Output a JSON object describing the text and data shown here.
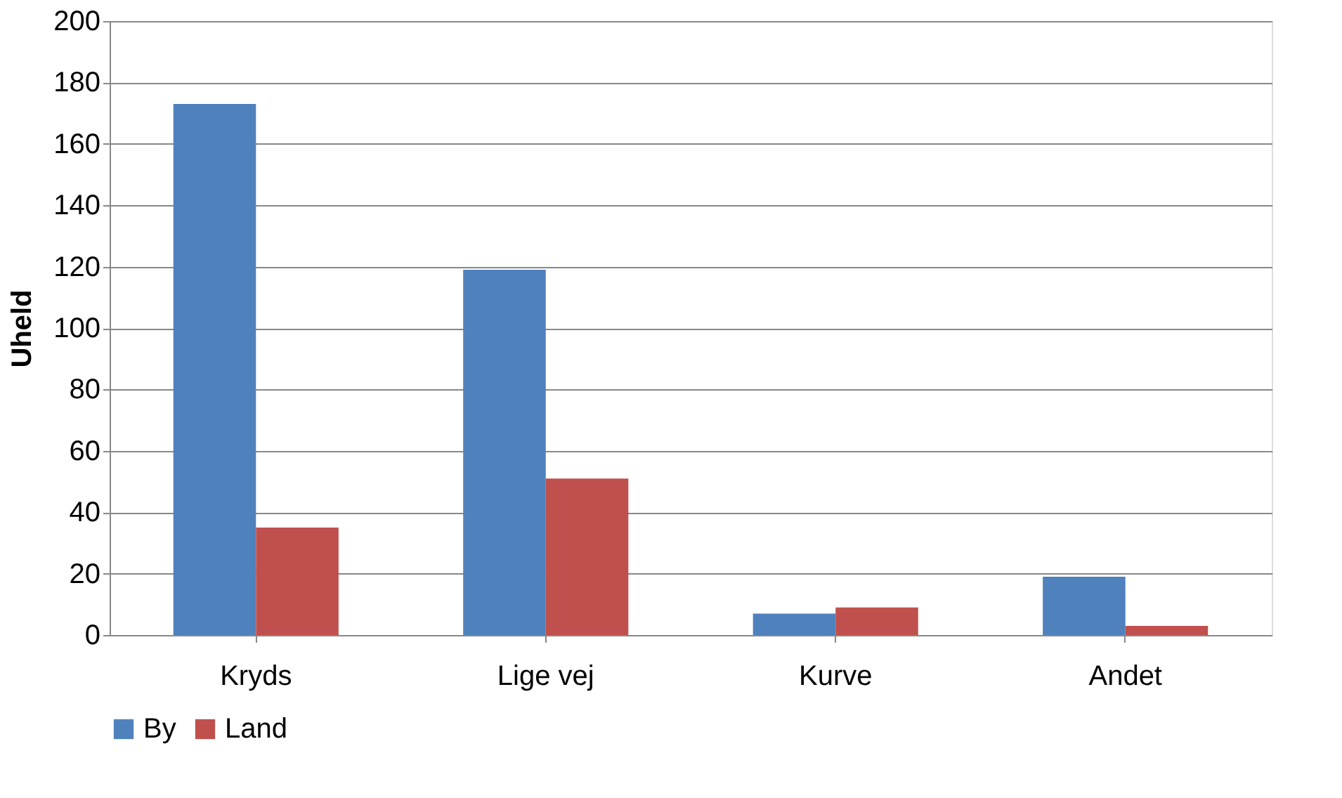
{
  "chart_data": {
    "type": "bar",
    "ylabel": "Uheld",
    "categories": [
      "Kryds",
      "Lige vej",
      "Kurve",
      "Andet"
    ],
    "series": [
      {
        "name": "By",
        "color": "#4f81bd",
        "values": [
          173,
          119,
          7,
          19
        ]
      },
      {
        "name": "Land",
        "color": "#c0504d",
        "values": [
          35,
          51,
          9,
          3
        ]
      }
    ],
    "ylim": [
      0,
      200
    ],
    "yticks": [
      0,
      20,
      40,
      60,
      80,
      100,
      120,
      140,
      160,
      180,
      200
    ],
    "grid": "y",
    "legend": "bottom"
  }
}
